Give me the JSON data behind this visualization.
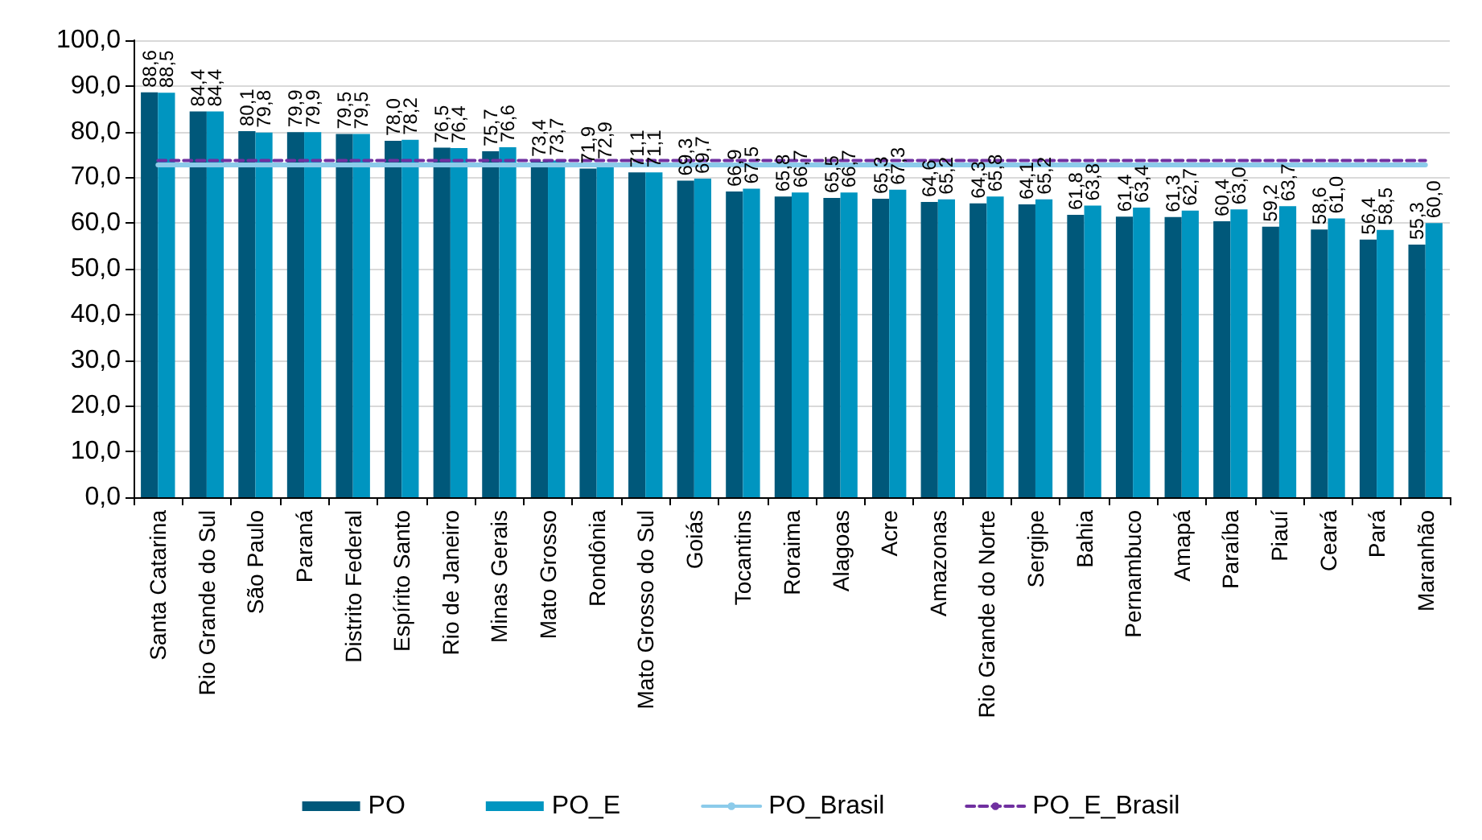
{
  "chart_data": {
    "type": "bar",
    "categories": [
      "Santa Catarina",
      "Rio Grande do Sul",
      "São Paulo",
      "Paraná",
      "Distrito Federal",
      "Espírito Santo",
      "Rio de Janeiro",
      "Minas Gerais",
      "Mato Grosso",
      "Rondônia",
      "Mato Grosso do Sul",
      "Goiás",
      "Tocantins",
      "Roraima",
      "Alagoas",
      "Acre",
      "Amazonas",
      "Rio Grande do Norte",
      "Sergipe",
      "Bahia",
      "Pernambuco",
      "Amapá",
      "Paraíba",
      "Piauí",
      "Ceará",
      "Pará",
      "Maranhão"
    ],
    "series": [
      {
        "name": "PO",
        "color": "#00587a",
        "values": [
          88.6,
          84.4,
          80.1,
          79.9,
          79.5,
          78.0,
          76.5,
          75.7,
          73.4,
          71.9,
          71.1,
          69.3,
          66.9,
          65.8,
          65.5,
          65.3,
          64.6,
          64.3,
          64.1,
          61.8,
          61.4,
          61.3,
          60.4,
          59.2,
          58.6,
          56.4,
          55.3
        ],
        "value_labels": [
          "88,6",
          "84,4",
          "80,1",
          "79,9",
          "79,5",
          "78,0",
          "76,5",
          "75,7",
          "73,4",
          "71,9",
          "71,1",
          "69,3",
          "66,9",
          "65,8",
          "65,5",
          "65,3",
          "64,6",
          "64,3",
          "64,1",
          "61,8",
          "61,4",
          "61,3",
          "60,4",
          "59,2",
          "58,6",
          "56,4",
          "55,3"
        ]
      },
      {
        "name": "PO_E",
        "color": "#0095c0",
        "values": [
          88.5,
          84.4,
          79.8,
          79.9,
          79.5,
          78.2,
          76.4,
          76.6,
          73.7,
          72.9,
          71.1,
          69.7,
          67.5,
          66.7,
          66.7,
          67.3,
          65.2,
          65.8,
          65.2,
          63.8,
          63.4,
          62.7,
          63.0,
          63.7,
          61.0,
          58.5,
          60.0
        ],
        "value_labels": [
          "88,5",
          "84,4",
          "79,8",
          "79,9",
          "79,5",
          "78,2",
          "76,4",
          "76,6",
          "73,7",
          "72,9",
          "71,1",
          "69,7",
          "67,5",
          "66,7",
          "66,7",
          "67,3",
          "65,2",
          "65,8",
          "65,2",
          "63,8",
          "63,4",
          "62,7",
          "63,0",
          "63,7",
          "61,0",
          "58,5",
          "60,0"
        ]
      },
      {
        "name": "PO_Brasil",
        "type": "line",
        "color": "#8ccbea",
        "line_style": "solid",
        "values": [
          72.7,
          72.7,
          72.7,
          72.7,
          72.7,
          72.7,
          72.7,
          72.7,
          72.7,
          72.7,
          72.7,
          72.7,
          72.7,
          72.7,
          72.7,
          72.7,
          72.7,
          72.7,
          72.7,
          72.7,
          72.7,
          72.7,
          72.7,
          72.7,
          72.7,
          72.7,
          72.7
        ]
      },
      {
        "name": "PO_E_Brasil",
        "type": "line",
        "color": "#7030a0",
        "line_style": "dashed",
        "values": [
          73.7,
          73.7,
          73.7,
          73.7,
          73.7,
          73.7,
          73.7,
          73.7,
          73.7,
          73.7,
          73.7,
          73.7,
          73.7,
          73.7,
          73.7,
          73.7,
          73.7,
          73.7,
          73.7,
          73.7,
          73.7,
          73.7,
          73.7,
          73.7,
          73.7,
          73.7,
          73.7
        ]
      }
    ],
    "ylim": [
      0,
      100
    ],
    "yticks": [
      {
        "value": 0,
        "label": "0,0"
      },
      {
        "value": 10,
        "label": "10,0"
      },
      {
        "value": 20,
        "label": "20,0"
      },
      {
        "value": 30,
        "label": "30,0"
      },
      {
        "value": 40,
        "label": "40,0"
      },
      {
        "value": 50,
        "label": "50,0"
      },
      {
        "value": 60,
        "label": "60,0"
      },
      {
        "value": 70,
        "label": "70,0"
      },
      {
        "value": 80,
        "label": "80,0"
      },
      {
        "value": 90,
        "label": "90,0"
      },
      {
        "value": 100,
        "label": "100,0"
      }
    ],
    "grid": "y",
    "legend": "bottom",
    "marker": "none"
  }
}
